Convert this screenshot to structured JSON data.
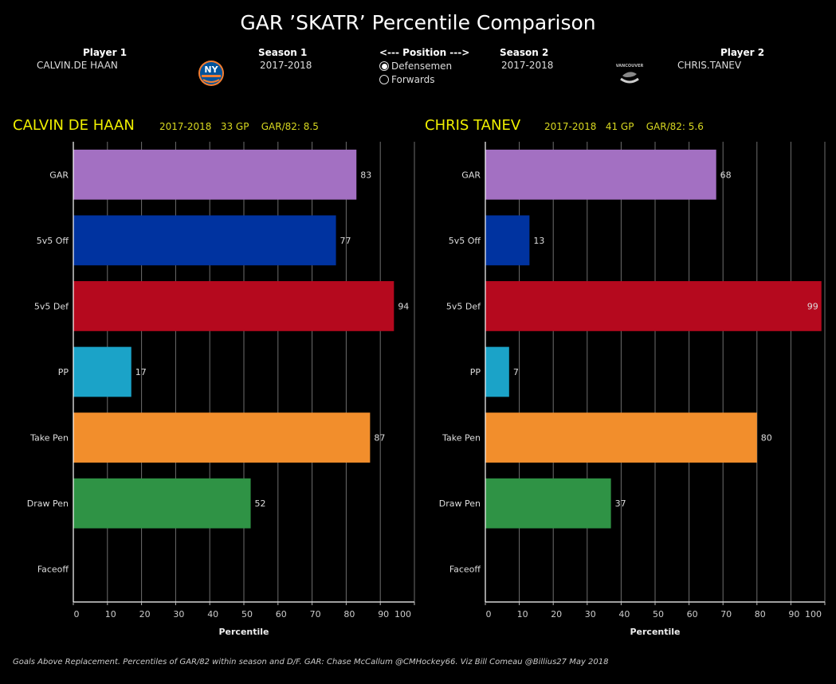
{
  "title": "GAR  ’SKATR’ Percentile Comparison",
  "controls": {
    "player1_label": "Player  1",
    "player1_value": "CALVIN.DE HAAN",
    "season1_label": "Season 1",
    "season1_value": "2017-2018",
    "position_label": "<--- Position --->",
    "position_options": [
      "Defensemen",
      "Forwards"
    ],
    "position_selected": "Defensemen",
    "season2_label": "Season 2",
    "season2_value": "2017-2018",
    "player2_label": "Player 2",
    "player2_value": "CHRIS.TANEV"
  },
  "logos": {
    "team1": "new-york-islanders-logo",
    "team2": "vancouver-canucks-logo"
  },
  "chart_data": [
    {
      "type": "bar",
      "orientation": "horizontal",
      "title": "CALVIN DE HAAN",
      "subtitle": "2017-2018   33 GP    GAR/82: 8.5",
      "categories": [
        "GAR",
        "5v5 Off",
        "5v5 Def",
        "PP",
        "Take Pen",
        "Draw Pen",
        "Faceoff"
      ],
      "values": [
        83,
        77,
        94,
        17,
        87,
        52,
        null
      ],
      "colors": [
        "#a370c2",
        "#0033a0",
        "#b5091e",
        "#1ba3c8",
        "#f28e2c",
        "#2f9345",
        "#000000"
      ],
      "xlabel": "Percentile",
      "ylabel": "",
      "xlim": [
        0,
        100
      ],
      "xticks": [
        0,
        10,
        20,
        30,
        40,
        50,
        60,
        70,
        80,
        90,
        100
      ],
      "grid": true
    },
    {
      "type": "bar",
      "orientation": "horizontal",
      "title": "CHRIS TANEV",
      "subtitle": "2017-2018   41 GP    GAR/82: 5.6",
      "categories": [
        "GAR",
        "5v5 Off",
        "5v5 Def",
        "PP",
        "Take Pen",
        "Draw Pen",
        "Faceoff"
      ],
      "values": [
        68,
        13,
        99,
        7,
        80,
        37,
        null
      ],
      "colors": [
        "#a370c2",
        "#0033a0",
        "#b5091e",
        "#1ba3c8",
        "#f28e2c",
        "#2f9345",
        "#000000"
      ],
      "xlabel": "Percentile",
      "ylabel": "",
      "xlim": [
        0,
        100
      ],
      "xticks": [
        0,
        10,
        20,
        30,
        40,
        50,
        60,
        70,
        80,
        90,
        100
      ],
      "grid": true
    }
  ],
  "footnote": "Goals Above Replacement. Percentiles of GAR/82 within season and D/F. GAR: Chase McCallum @CMHockey66. Viz Bill Comeau @Billius27 May 2018"
}
